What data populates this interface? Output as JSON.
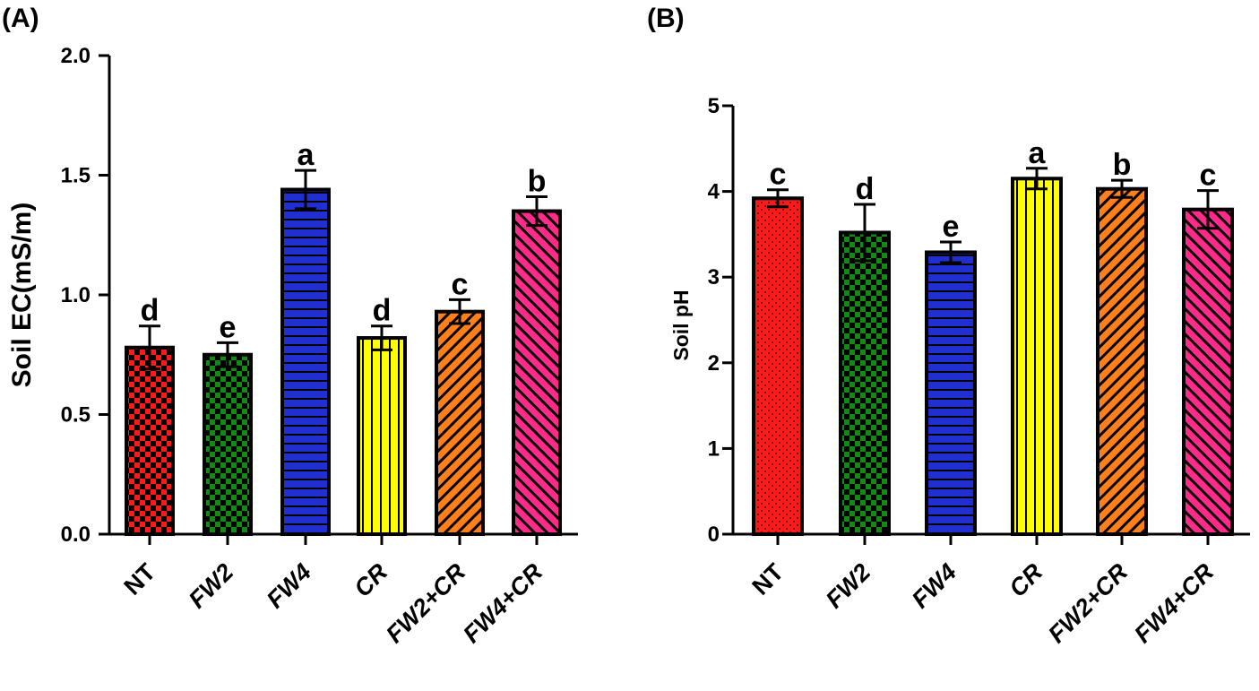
{
  "chart_data": [
    {
      "type": "bar",
      "panel_label": "(A)",
      "title": "",
      "xlabel": "",
      "ylabel": "Soil EC(mS/m)",
      "ylim": [
        0,
        2.0
      ],
      "yticks": [
        "0.0",
        "0.5",
        "1.0",
        "1.5",
        "2.0"
      ],
      "ytick_values": [
        0,
        0.5,
        1.0,
        1.5,
        2.0
      ],
      "categories": [
        "NT",
        "FW2",
        "FW4",
        "CR",
        "FW2+CR",
        "FW4+CR"
      ],
      "values": [
        0.78,
        0.75,
        1.44,
        0.82,
        0.93,
        1.35
      ],
      "errors": [
        0.09,
        0.05,
        0.08,
        0.05,
        0.05,
        0.06
      ],
      "significance": [
        "d",
        "e",
        "a",
        "d",
        "c",
        "b"
      ],
      "colors": [
        "#ff1a1a",
        "#138a13",
        "#1f2fd0",
        "#ffff00",
        "#ff7f1a",
        "#ff2a8a"
      ],
      "patterns": [
        "checker",
        "checker",
        "hlines",
        "vlines",
        "diag-right",
        "diag-left"
      ]
    },
    {
      "type": "bar",
      "panel_label": "(B)",
      "title": "",
      "xlabel": "",
      "ylabel": "Soil pH",
      "ylim": [
        0,
        5
      ],
      "yticks": [
        "0",
        "1",
        "2",
        "3",
        "4",
        "5"
      ],
      "ytick_values": [
        0,
        1,
        2,
        3,
        4,
        5
      ],
      "categories": [
        "NT",
        "FW2",
        "FW4",
        "CR",
        "FW2+CR",
        "FW4+CR"
      ],
      "values": [
        3.92,
        3.52,
        3.29,
        4.15,
        4.03,
        3.79
      ],
      "errors": [
        0.1,
        0.33,
        0.12,
        0.12,
        0.1,
        0.22
      ],
      "significance": [
        "c",
        "d",
        "e",
        "a",
        "b",
        "c"
      ],
      "colors": [
        "#ff1a1a",
        "#138a13",
        "#1f2fd0",
        "#ffff00",
        "#ff7f1a",
        "#ff2a8a"
      ],
      "patterns": [
        "dots",
        "checker",
        "hlines",
        "vlines",
        "diag-right",
        "diag-left"
      ]
    }
  ]
}
